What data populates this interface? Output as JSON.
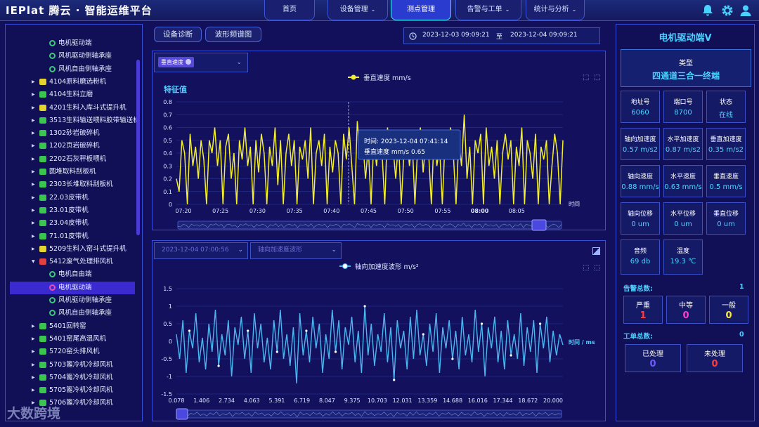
{
  "app": {
    "logo": "IEPlat 腾云 · 智能运维平台"
  },
  "nav": [
    {
      "label": "首页",
      "caret": false,
      "active": false
    },
    {
      "label": "设备管理",
      "caret": true,
      "active": false
    },
    {
      "label": "测点管理",
      "caret": false,
      "active": true
    },
    {
      "label": "告警与工单",
      "caret": true,
      "active": false
    },
    {
      "label": "统计与分析",
      "caret": true,
      "active": false
    }
  ],
  "top_icons": [
    "bell-icon",
    "settings-gear-icon",
    "user-icon"
  ],
  "tree": [
    {
      "label": "电机驱动端",
      "level": 2,
      "icon": "sub"
    },
    {
      "label": "风机驱动侧轴承座",
      "level": 2,
      "icon": "sub"
    },
    {
      "label": "风机自由侧轴承座",
      "level": 2,
      "icon": "sub"
    },
    {
      "label": "4104原料磨选粉机",
      "level": 1,
      "icon": "yellow"
    },
    {
      "label": "4104生料立磨",
      "level": 1,
      "icon": "green"
    },
    {
      "label": "4201生料入库斗式提升机",
      "level": 1,
      "icon": "yellow"
    },
    {
      "label": "3513生料输送喂料胶带输送机",
      "level": 1,
      "icon": "green"
    },
    {
      "label": "1302砂岩破碎机",
      "level": 1,
      "icon": "green"
    },
    {
      "label": "1202页岩破碎机",
      "level": 1,
      "icon": "green"
    },
    {
      "label": "2202石灰秤板喂机",
      "level": 1,
      "icon": "green"
    },
    {
      "label": "圆堆取料刮板机",
      "level": 1,
      "icon": "green"
    },
    {
      "label": "2303长堆取料刮板机",
      "level": 1,
      "icon": "green"
    },
    {
      "label": "22.03皮带机",
      "level": 1,
      "icon": "green"
    },
    {
      "label": "23.01皮带机",
      "level": 1,
      "icon": "green"
    },
    {
      "label": "23.04皮带机",
      "level": 1,
      "icon": "green"
    },
    {
      "label": "71.01皮带机",
      "level": 1,
      "icon": "green"
    },
    {
      "label": "5209生料入窑斗式提升机",
      "level": 1,
      "icon": "yellow"
    },
    {
      "label": "5412废气处理排风机",
      "level": 1,
      "icon": "red",
      "expanded": true
    },
    {
      "label": "电机自由端",
      "level": 2,
      "icon": "sub"
    },
    {
      "label": "电机驱动端",
      "level": 2,
      "icon": "sub-pink",
      "selected": true
    },
    {
      "label": "风机驱动侧轴承座",
      "level": 2,
      "icon": "sub"
    },
    {
      "label": "风机自由侧轴承座",
      "level": 2,
      "icon": "sub"
    },
    {
      "label": "5401回转窑",
      "level": 1,
      "icon": "green"
    },
    {
      "label": "5401窑尾高温风机",
      "level": 1,
      "icon": "green"
    },
    {
      "label": "5720窑头排风机",
      "level": 1,
      "icon": "green"
    },
    {
      "label": "5703篦冷机冷却风机",
      "level": 1,
      "icon": "green"
    },
    {
      "label": "5704篦冷机冷却风机",
      "level": 1,
      "icon": "green"
    },
    {
      "label": "5705篦冷机冷却风机",
      "level": 1,
      "icon": "green"
    },
    {
      "label": "5706篦冷机冷却风机",
      "level": 1,
      "icon": "green"
    }
  ],
  "watermark": "大数跨境",
  "toolbar": {
    "btn_diag": "设备诊断",
    "btn_spectrum": "波形频谱图"
  },
  "daterange": {
    "start": "2023-12-03 09:09:21",
    "sep": "至",
    "end": "2023-12-04 09:09:21"
  },
  "top_chart": {
    "selector_tag": "垂直速度",
    "legend": "垂直速度 mm/s",
    "section_title": "特征值",
    "xlabel": "时间",
    "yticks": [
      "0.8",
      "0.7",
      "0.6",
      "0.5",
      "0.4",
      "0.3",
      "0.2",
      "0.1",
      "0"
    ],
    "xticks": [
      "07:20",
      "07:25",
      "07:30",
      "07:35",
      "07:40",
      "07:45",
      "07:50",
      "07:55",
      "08:00",
      "08:05"
    ],
    "tooltip": {
      "line1": "时间:  2023-12-04 07:41:14",
      "line2": "垂直速度 mm/s 0.65"
    }
  },
  "bottom_chart": {
    "select_time": "2023-12-04 07:00:56",
    "select_type": "轴向加速度波形",
    "legend": "轴向加速度波形 m/s²",
    "xlabel": "时间 / ms",
    "yticks": [
      "1.5",
      "1",
      "0.5",
      "0",
      "-0.5",
      "-1",
      "-1.5"
    ],
    "xticks": [
      "0.078",
      "1.406",
      "2.734",
      "4.063",
      "5.391",
      "6.719",
      "8.047",
      "9.375",
      "10.703",
      "12.031",
      "13.359",
      "14.688",
      "16.016",
      "17.344",
      "18.672",
      "20.000"
    ]
  },
  "chart_data": [
    {
      "type": "line",
      "title": "特征值",
      "series": [
        {
          "name": "垂直速度 mm/s",
          "values": [
            0.2,
            0.1,
            0.5,
            0.4,
            0.0,
            0.55,
            0.3,
            0.45,
            0.2,
            0.5,
            0.35,
            0.0,
            0.5,
            0.4,
            0.6,
            0.3,
            0.5,
            0.0,
            0.45,
            0.55,
            0.2,
            0.4,
            0.0,
            0.5,
            0.35,
            0.6,
            0.3,
            0.45,
            0.0,
            0.5,
            0.25,
            0.55,
            0.4,
            0.0,
            0.45,
            0.3,
            0.6,
            0.15,
            0.5,
            0.0,
            0.4,
            0.55,
            0.3,
            0.5,
            0.0,
            0.45,
            0.35,
            0.5,
            0.2,
            0.6,
            0.0,
            0.4,
            0.5,
            0.3,
            0.55,
            0.0,
            0.45,
            0.25,
            0.5,
            0.4,
            0.0,
            0.55,
            0.35,
            0.6,
            0.3,
            0.0,
            0.65,
            0.4,
            0.5,
            0.2,
            0.45,
            0.0,
            0.5,
            0.3,
            0.55,
            0.4,
            0.0,
            0.6,
            0.35,
            0.45,
            0.2,
            0.5,
            0.0,
            0.4,
            0.55,
            0.3,
            0.5,
            0.0,
            0.45,
            0.6,
            0.25,
            0.5,
            0.4,
            0.0,
            0.55,
            0.3,
            0.45,
            0.0,
            0.5,
            0.35,
            0.6,
            0.4,
            0.0,
            0.5,
            0.3,
            0.7,
            0.2,
            0.45,
            0.0,
            0.5,
            0.4,
            0.55,
            0.0,
            0.6,
            0.3,
            0.45,
            0.2,
            0.5,
            0.0,
            0.4,
            0.55,
            0.35,
            0.5,
            0.0,
            0.45,
            0.3,
            0.6,
            0.0,
            0.5,
            0.4,
            0.2,
            0.55,
            0.0,
            0.45,
            0.35,
            0.5,
            0.0,
            0.3,
            0.55,
            0.4,
            0.0,
            0.5
          ]
        }
      ],
      "xlabel": "时间",
      "ylim": [
        0,
        0.8
      ],
      "legend": "top-center",
      "grid": true
    },
    {
      "type": "line",
      "series": [
        {
          "name": "轴向加速度波形 m/s²",
          "values": [
            0.2,
            -0.5,
            0.6,
            -0.9,
            0.3,
            -0.2,
            0.8,
            -0.6,
            0.1,
            -0.8,
            0.5,
            -0.3,
            0.9,
            -0.7,
            0.2,
            -0.4,
            0.6,
            -1.0,
            0.4,
            -0.1,
            0.7,
            -0.5,
            0.3,
            -0.9,
            0.8,
            -0.2,
            0.5,
            -0.6,
            0.1,
            -0.8,
            0.6,
            -0.3,
            0.9,
            -0.5,
            0.2,
            -0.7,
            0.4,
            -1.2,
            0.8,
            -0.4,
            0.3,
            -0.6,
            0.7,
            -0.2,
            0.5,
            -0.9,
            0.2,
            -0.5,
            0.9,
            -0.3,
            0.6,
            -0.8,
            0.4,
            -0.1,
            0.7,
            -0.6,
            0.3,
            -0.9,
            1.0,
            -0.4,
            0.5,
            -0.7,
            0.2,
            -0.3,
            0.8,
            -0.6,
            0.4,
            -1.1,
            0.6,
            -0.2,
            0.3,
            -0.8,
            0.7,
            -0.5,
            0.9,
            -0.4,
            0.2,
            -0.7,
            0.5,
            -0.3,
            0.8,
            -0.9,
            0.4,
            -0.2,
            0.6,
            -0.5,
            0.3,
            -0.8,
            0.7,
            -0.4,
            0.2,
            -0.6,
            0.9,
            -0.3,
            0.5,
            -1.0,
            0.4,
            -0.2,
            0.7,
            -0.6,
            0.3,
            -0.8,
            0.6,
            -0.4,
            0.2,
            -0.5,
            0.8,
            -0.7,
            0.4,
            -0.3,
            0.6,
            -0.9,
            0.5,
            -0.2,
            0.7,
            -0.6,
            0.3,
            -0.4,
            0.2,
            -0.1
          ]
        }
      ],
      "xlabel": "时间 / ms",
      "ylim": [
        -1.5,
        1.5
      ],
      "xlim": [
        0.078,
        20.0
      ],
      "legend": "top-center",
      "grid": true
    }
  ],
  "device_panel": {
    "title": "电机驱动端V",
    "type_label": "类型",
    "type_value": "四通道三合一终端",
    "cells": [
      {
        "label": "地址号",
        "value": "6060"
      },
      {
        "label": "端口号",
        "value": "8700"
      },
      {
        "label": "状态",
        "value": "在线"
      },
      {
        "label": "轴向加速度",
        "value": "0.57 m/s2"
      },
      {
        "label": "水平加速度",
        "value": "0.87 m/s2"
      },
      {
        "label": "垂直加速度",
        "value": "0.35 m/s2"
      },
      {
        "label": "轴向速度",
        "value": "0.88 mm/s"
      },
      {
        "label": "水平速度",
        "value": "0.63 mm/s"
      },
      {
        "label": "垂直速度",
        "value": "0.5 mm/s"
      },
      {
        "label": "轴向位移",
        "value": "0 um"
      },
      {
        "label": "水平位移",
        "value": "0 um"
      },
      {
        "label": "垂直位移",
        "value": "0 um"
      },
      {
        "label": "音频",
        "value": "69 db"
      },
      {
        "label": "温度",
        "value": "19.3 ℃"
      }
    ],
    "alarm_total_label": "告警总数:",
    "alarm_total": "1",
    "alarms": [
      {
        "label": "严重",
        "value": "1",
        "color": "#ff3b3b"
      },
      {
        "label": "中等",
        "value": "0",
        "color": "#ff3fd0"
      },
      {
        "label": "一般",
        "value": "0",
        "color": "#ffe93a"
      }
    ],
    "order_total_label": "工单总数:",
    "order_total": "0",
    "orders": [
      {
        "label": "已处理",
        "value": "0",
        "color": "#6f5bff"
      },
      {
        "label": "未处理",
        "value": "0",
        "color": "#ff3b3b"
      }
    ]
  }
}
